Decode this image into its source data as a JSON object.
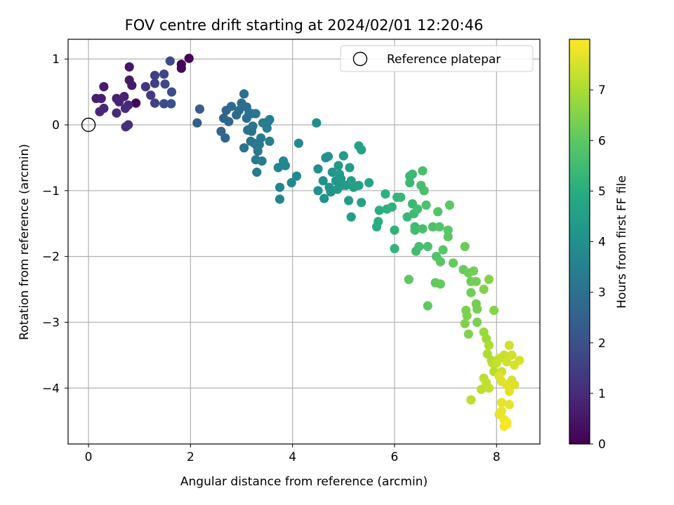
{
  "chart_data": {
    "type": "scatter",
    "title": "FOV centre drift starting at 2024/02/01 12:20:46",
    "xlabel": "Angular distance from reference (arcmin)",
    "ylabel": "Rotation from reference (arcmin)",
    "xlim": [
      -0.4,
      8.85
    ],
    "ylim": [
      -4.85,
      1.3
    ],
    "xticks": [
      0,
      2,
      4,
      6,
      8
    ],
    "yticks": [
      1,
      0,
      -1,
      -2,
      -3,
      -4
    ],
    "xtick_labels": [
      "0",
      "2",
      "4",
      "6",
      "8"
    ],
    "ytick_labels": [
      "1",
      "0",
      "−1",
      "−2",
      "−3",
      "−4"
    ],
    "grid": true,
    "legend": {
      "placement": "top-right",
      "entries": [
        "Reference platepar"
      ]
    },
    "reference_point": {
      "label": "Reference platepar",
      "x": 0,
      "y": 0
    },
    "colorbar": {
      "label": "Hours from first FF file",
      "colormap": "viridis",
      "range": [
        0,
        8.0
      ],
      "ticks": [
        0,
        1,
        2,
        3,
        4,
        5,
        6,
        7
      ],
      "tick_labels": [
        "0",
        "1",
        "2",
        "3",
        "4",
        "5",
        "6",
        "7"
      ]
    },
    "series": [
      {
        "points": [
          [
            1.97,
            1.01,
            0.02
          ],
          [
            1.82,
            0.92,
            0.05
          ],
          [
            1.82,
            0.86,
            0.08
          ],
          [
            0.93,
            0.33,
            0.12
          ],
          [
            0.8,
            0.88,
            0.5
          ],
          [
            0.8,
            0.68,
            0.55
          ],
          [
            0.85,
            0.6,
            0.6
          ],
          [
            0.3,
            0.58,
            0.65
          ],
          [
            0.15,
            0.4,
            0.7
          ],
          [
            0.25,
            0.4,
            0.72
          ],
          [
            0.55,
            0.4,
            0.75
          ],
          [
            0.7,
            0.43,
            0.78
          ],
          [
            0.6,
            0.35,
            0.82
          ],
          [
            0.78,
            0.3,
            0.85
          ],
          [
            0.3,
            0.25,
            0.88
          ],
          [
            0.22,
            0.2,
            0.9
          ],
          [
            0.55,
            0.18,
            0.95
          ],
          [
            0.72,
            0.25,
            1.0
          ],
          [
            0.78,
            0.0,
            1.05
          ],
          [
            0.73,
            -0.03,
            1.1
          ],
          [
            1.12,
            0.58,
            1.3
          ],
          [
            1.22,
            0.45,
            1.4
          ],
          [
            1.3,
            0.75,
            1.5
          ],
          [
            1.3,
            0.63,
            1.55
          ],
          [
            1.3,
            0.33,
            1.6
          ],
          [
            1.48,
            0.77,
            1.7
          ],
          [
            1.5,
            0.62,
            1.75
          ],
          [
            1.48,
            0.32,
            1.8
          ],
          [
            1.6,
            0.97,
            1.85
          ],
          [
            1.63,
            0.5,
            1.9
          ],
          [
            1.62,
            0.32,
            1.95
          ],
          [
            2.18,
            0.24,
            2.4
          ],
          [
            2.13,
            0.03,
            2.45
          ],
          [
            2.6,
            -0.1,
            2.6
          ],
          [
            2.65,
            0.1,
            2.62
          ],
          [
            2.7,
            0.22,
            2.65
          ],
          [
            2.68,
            -0.2,
            2.68
          ],
          [
            2.75,
            0.05,
            2.7
          ],
          [
            2.8,
            0.28,
            2.75
          ],
          [
            2.9,
            0.15,
            2.8
          ],
          [
            2.95,
            0.22,
            2.85
          ],
          [
            3.0,
            0.33,
            2.88
          ],
          [
            3.05,
            0.47,
            2.9
          ],
          [
            3.1,
            0.27,
            2.92
          ],
          [
            3.1,
            0.1,
            2.95
          ],
          [
            3.15,
            0.18,
            2.98
          ],
          [
            3.12,
            -0.08,
            3.0
          ],
          [
            3.2,
            0.17,
            3.02
          ],
          [
            3.05,
            -0.35,
            3.05
          ],
          [
            3.18,
            -0.25,
            3.08
          ],
          [
            3.2,
            -0.1,
            3.1
          ],
          [
            3.22,
            -0.02,
            3.12
          ],
          [
            3.28,
            0.17,
            3.15
          ],
          [
            3.25,
            -0.28,
            3.18
          ],
          [
            3.3,
            -0.32,
            3.2
          ],
          [
            3.28,
            -0.53,
            3.22
          ],
          [
            3.32,
            -0.4,
            3.25
          ],
          [
            3.3,
            -0.72,
            3.28
          ],
          [
            3.35,
            -0.3,
            3.3
          ],
          [
            3.38,
            -0.2,
            3.32
          ],
          [
            3.4,
            -0.55,
            3.35
          ],
          [
            3.42,
            0.03,
            3.38
          ],
          [
            3.5,
            -0.05,
            3.4
          ],
          [
            3.52,
            0.05,
            3.42
          ],
          [
            3.55,
            0.08,
            3.45
          ],
          [
            3.55,
            -0.25,
            3.48
          ],
          [
            3.72,
            -0.65,
            3.6
          ],
          [
            3.75,
            -0.95,
            3.62
          ],
          [
            3.75,
            -1.13,
            3.65
          ],
          [
            3.82,
            -0.55,
            3.7
          ],
          [
            3.86,
            -0.62,
            3.72
          ],
          [
            3.98,
            -0.88,
            3.75
          ],
          [
            4.08,
            -0.78,
            3.8
          ],
          [
            4.12,
            -0.28,
            3.85
          ],
          [
            4.47,
            0.03,
            3.9
          ],
          [
            4.5,
            -0.67,
            4.0
          ],
          [
            4.5,
            -1.0,
            4.02
          ],
          [
            4.6,
            -0.85,
            4.05
          ],
          [
            4.62,
            -1.12,
            4.08
          ],
          [
            4.65,
            -0.5,
            4.1
          ],
          [
            4.7,
            -0.48,
            4.12
          ],
          [
            4.72,
            -0.95,
            4.15
          ],
          [
            4.75,
            -1.02,
            4.18
          ],
          [
            4.78,
            -0.72,
            4.2
          ],
          [
            4.85,
            -0.85,
            4.22
          ],
          [
            4.88,
            -0.98,
            4.25
          ],
          [
            4.9,
            -0.62,
            4.28
          ],
          [
            4.92,
            -0.75,
            4.3
          ],
          [
            4.95,
            -0.82,
            4.32
          ],
          [
            4.98,
            -0.92,
            4.35
          ],
          [
            5.0,
            -0.47,
            4.38
          ],
          [
            5.05,
            -0.92,
            4.4
          ],
          [
            5.1,
            -1.15,
            4.42
          ],
          [
            5.12,
            -0.65,
            4.45
          ],
          [
            5.15,
            -0.85,
            4.48
          ],
          [
            5.15,
            -1.4,
            4.5
          ],
          [
            5.2,
            -0.95,
            4.52
          ],
          [
            5.3,
            -0.92,
            4.55
          ],
          [
            5.3,
            -0.32,
            4.58
          ],
          [
            5.35,
            -0.38,
            4.6
          ],
          [
            5.35,
            -1.18,
            4.62
          ],
          [
            5.5,
            -0.88,
            4.7
          ],
          [
            5.65,
            -1.55,
            5.0
          ],
          [
            5.68,
            -1.47,
            5.02
          ],
          [
            5.7,
            -1.3,
            5.05
          ],
          [
            5.82,
            -1.05,
            5.1
          ],
          [
            5.85,
            -1.28,
            5.12
          ],
          [
            5.95,
            -1.25,
            5.15
          ],
          [
            6.0,
            -1.6,
            5.2
          ],
          [
            6.0,
            -1.88,
            5.22
          ],
          [
            6.05,
            -1.1,
            5.25
          ],
          [
            6.12,
            -1.1,
            5.28
          ],
          [
            6.25,
            -1.4,
            5.32
          ],
          [
            6.3,
            -0.78,
            5.35
          ],
          [
            6.3,
            -0.88,
            5.38
          ],
          [
            6.35,
            -1.2,
            5.4
          ],
          [
            6.35,
            -0.75,
            5.42
          ],
          [
            6.38,
            -1.35,
            5.45
          ],
          [
            6.4,
            -1.55,
            5.48
          ],
          [
            6.4,
            -1.6,
            5.5
          ],
          [
            6.42,
            -1.92,
            5.52
          ],
          [
            6.45,
            -1.28,
            5.55
          ],
          [
            6.48,
            -1.85,
            5.58
          ],
          [
            6.52,
            -0.92,
            5.6
          ],
          [
            6.55,
            -1.58,
            5.62
          ],
          [
            6.55,
            -0.7,
            5.65
          ],
          [
            6.58,
            -1.0,
            5.68
          ],
          [
            6.65,
            -1.85,
            5.7
          ],
          [
            6.62,
            -1.22,
            5.72
          ],
          [
            6.75,
            -1.55,
            5.75
          ],
          [
            6.82,
            -2.0,
            5.8
          ],
          [
            6.85,
            -1.32,
            5.82
          ],
          [
            6.88,
            -1.55,
            5.85
          ],
          [
            6.9,
            -2.08,
            5.88
          ],
          [
            6.95,
            -1.9,
            5.9
          ],
          [
            7.05,
            -1.6,
            5.92
          ],
          [
            7.05,
            -1.7,
            5.95
          ],
          [
            7.08,
            -1.22,
            5.98
          ],
          [
            6.28,
            -2.35,
            6.0
          ],
          [
            6.65,
            -2.75,
            6.02
          ],
          [
            6.8,
            -2.4,
            6.05
          ],
          [
            6.9,
            -2.42,
            6.08
          ],
          [
            7.15,
            -2.1,
            6.1
          ],
          [
            7.35,
            -2.2,
            6.15
          ],
          [
            7.38,
            -1.85,
            6.18
          ],
          [
            7.45,
            -2.25,
            6.2
          ],
          [
            7.5,
            -2.38,
            6.22
          ],
          [
            7.5,
            -2.55,
            6.25
          ],
          [
            7.55,
            -2.22,
            6.28
          ],
          [
            7.6,
            -2.38,
            6.3
          ],
          [
            7.6,
            -2.72,
            6.32
          ],
          [
            7.62,
            -2.8,
            6.35
          ],
          [
            7.62,
            -3.0,
            6.38
          ],
          [
            7.4,
            -2.82,
            6.4
          ],
          [
            7.42,
            -2.9,
            6.42
          ],
          [
            7.45,
            -3.18,
            6.45
          ],
          [
            7.38,
            -3.02,
            6.48
          ],
          [
            7.75,
            -2.5,
            6.5
          ],
          [
            7.85,
            -2.35,
            6.52
          ],
          [
            7.95,
            -2.82,
            6.55
          ],
          [
            7.75,
            -3.15,
            6.8
          ],
          [
            7.8,
            -3.25,
            6.85
          ],
          [
            7.85,
            -3.35,
            7.0
          ],
          [
            7.82,
            -3.48,
            7.05
          ],
          [
            7.9,
            -3.58,
            7.1
          ],
          [
            7.92,
            -3.62,
            7.15
          ],
          [
            7.95,
            -3.75,
            7.18
          ],
          [
            7.5,
            -4.18,
            7.2
          ],
          [
            7.7,
            -4.02,
            7.22
          ],
          [
            7.75,
            -3.85,
            7.25
          ],
          [
            7.8,
            -3.92,
            7.28
          ],
          [
            7.85,
            -4.0,
            7.3
          ],
          [
            8.0,
            -3.62,
            7.32
          ],
          [
            8.05,
            -3.55,
            7.35
          ],
          [
            8.1,
            -3.75,
            7.38
          ],
          [
            8.15,
            -3.5,
            7.4
          ],
          [
            8.2,
            -3.6,
            7.42
          ],
          [
            8.25,
            -3.35,
            7.45
          ],
          [
            8.3,
            -3.5,
            7.48
          ],
          [
            8.35,
            -3.65,
            7.5
          ],
          [
            8.45,
            -3.58,
            7.52
          ],
          [
            8.3,
            -3.88,
            7.55
          ],
          [
            8.35,
            -3.95,
            7.58
          ],
          [
            8.05,
            -3.82,
            7.6
          ],
          [
            8.1,
            -3.9,
            7.62
          ],
          [
            8.2,
            -3.95,
            7.65
          ],
          [
            8.25,
            -4.05,
            7.68
          ],
          [
            8.1,
            -4.22,
            7.7
          ],
          [
            8.25,
            -4.25,
            7.72
          ],
          [
            8.05,
            -4.4,
            7.75
          ],
          [
            8.1,
            -4.35,
            7.78
          ],
          [
            8.15,
            -4.48,
            7.8
          ],
          [
            8.2,
            -4.52,
            7.85
          ],
          [
            8.15,
            -4.58,
            7.9
          ],
          [
            8.2,
            -4.55,
            7.95
          ]
        ]
      }
    ]
  }
}
